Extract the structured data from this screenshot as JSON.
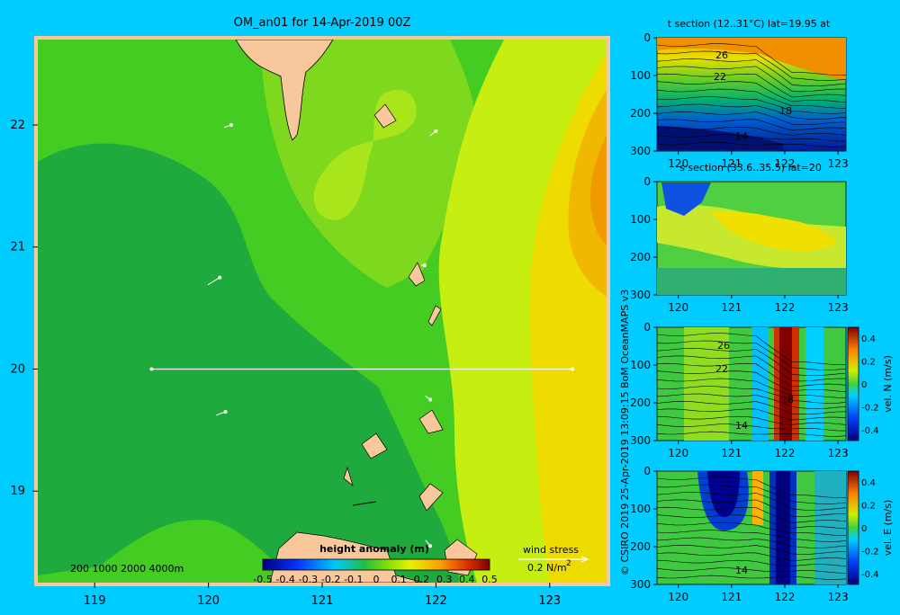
{
  "chart_data": [
    {
      "type": "heatmap",
      "title": "OM_an01 for 14-Apr-2019 00Z",
      "xlim": [
        118.5,
        123.5
      ],
      "ylim": [
        18.25,
        22.7
      ],
      "xticks": [
        119,
        120,
        121,
        122,
        123
      ],
      "yticks": [
        19,
        20,
        21,
        22
      ],
      "section_line": {
        "lon": [
          119.5,
          123.2
        ],
        "lat": 20.0
      },
      "depth_scale_label": "200  1000  2000  4000m",
      "colorbar": {
        "label": "height anomaly  (m)",
        "ticks": [
          "-0.5",
          "-0.4",
          "-0.3",
          "-0.2",
          "-0.1",
          "0",
          "0.1",
          "0.2",
          "0.3",
          "0.4",
          "0.5"
        ],
        "range": [
          -0.5,
          0.5
        ]
      },
      "wind_key": {
        "label": "wind stress",
        "value": "0.2 N/m",
        "superscript": "2"
      },
      "wind_arrows": [
        {
          "lon": 120.2,
          "lat": 22.0,
          "u": 0.06,
          "v": 0.02
        },
        {
          "lon": 122.0,
          "lat": 21.95,
          "u": 0.05,
          "v": 0.04
        },
        {
          "lon": 120.1,
          "lat": 20.75,
          "u": 0.1,
          "v": 0.06
        },
        {
          "lon": 121.9,
          "lat": 20.85,
          "u": 0.03,
          "v": 0.0
        },
        {
          "lon": 120.15,
          "lat": 19.65,
          "u": 0.08,
          "v": 0.03
        },
        {
          "lon": 121.95,
          "lat": 19.75,
          "u": 0.04,
          "v": -0.03
        },
        {
          "lon": 121.95,
          "lat": 18.55,
          "u": 0.04,
          "v": -0.05
        }
      ]
    },
    {
      "type": "heatmap",
      "title": "t section (12..31°C) lat=19.95 at",
      "xticks": [
        120,
        121,
        122,
        123
      ],
      "yticks": [
        0,
        100,
        200,
        300
      ],
      "contour_labels": [
        "26",
        "22",
        "18",
        "14"
      ]
    },
    {
      "type": "heatmap",
      "title": "s section (33.6..35.5) lat=20",
      "xticks": [
        120,
        121,
        122,
        123
      ],
      "yticks": [
        0,
        100,
        200,
        300
      ]
    },
    {
      "type": "heatmap",
      "title": "",
      "xticks": [
        120,
        121,
        122,
        123
      ],
      "yticks": [
        0,
        100,
        200,
        300
      ],
      "contour_labels": [
        "26",
        "22",
        "18",
        "14"
      ],
      "colorbar": {
        "label": "vel. N  (m/s)",
        "ticks": [
          "0.4",
          "0.2",
          "0",
          "-0.2",
          "-0.4"
        ]
      }
    },
    {
      "type": "heatmap",
      "title": "",
      "xticks": [
        120,
        121,
        122,
        123
      ],
      "yticks": [
        0,
        100,
        200,
        300
      ],
      "contour_labels": [
        "14"
      ],
      "colorbar": {
        "label": "vel. E  (m/s)",
        "ticks": [
          "0.4",
          "0.2",
          "0",
          "-0.2",
          "-0.4"
        ]
      }
    }
  ],
  "credit": "© CSIRO 2019   25-Apr-2019 13:09:15 BoM OceanMAPS v3"
}
